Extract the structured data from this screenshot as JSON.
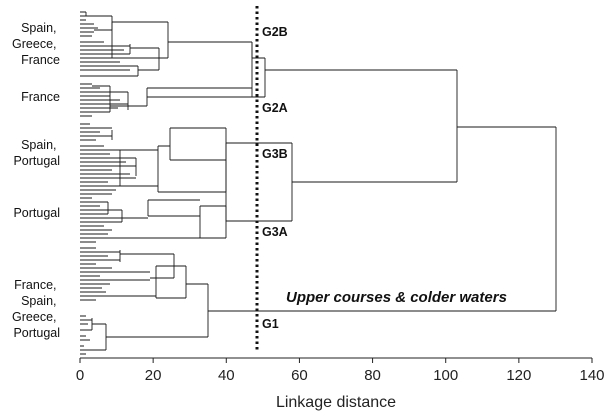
{
  "figure": {
    "region_labels": [
      {
        "id": "spain-greece-france",
        "lines": [
          "Spain,",
          "Greece,",
          "France"
        ]
      },
      {
        "id": "france",
        "lines": [
          "France"
        ]
      },
      {
        "id": "spain-portugal",
        "lines": [
          "Spain,",
          "Portugal"
        ]
      },
      {
        "id": "portugal",
        "lines": [
          "Portugal"
        ]
      },
      {
        "id": "france-spain-greece-portugal",
        "lines": [
          "France,",
          "Spain,",
          "Greece,",
          "Portugal"
        ]
      }
    ],
    "groups": [
      {
        "id": "g2b",
        "label": "G2B"
      },
      {
        "id": "g2a",
        "label": "G2A"
      },
      {
        "id": "g3b",
        "label": "G3B"
      },
      {
        "id": "g3a",
        "label": "G3A"
      },
      {
        "id": "g1",
        "label": "G1"
      }
    ],
    "annotation": "Upper courses & colder waters",
    "x_axis": {
      "label": "Linkage distance",
      "range": [
        0,
        140
      ],
      "ticks": [
        0,
        20,
        40,
        60,
        80,
        100,
        120,
        140
      ]
    },
    "cut_line_distance": 48,
    "colors": {
      "line": "#1a1a1a",
      "text": "#111111"
    }
  }
}
